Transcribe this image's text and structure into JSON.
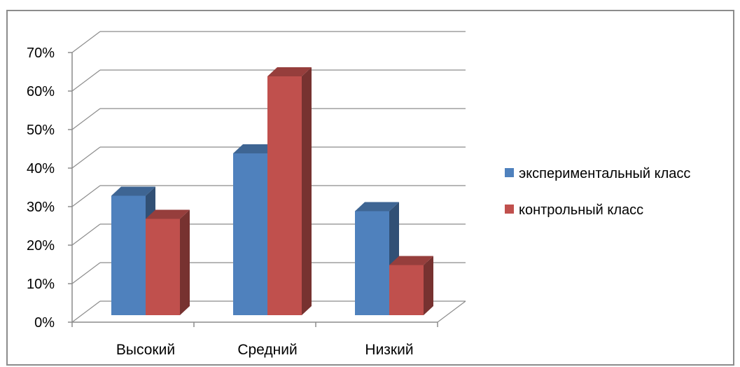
{
  "chart_data": {
    "type": "bar",
    "three_d": true,
    "categories": [
      "Высокий",
      "Средний",
      "Низкий"
    ],
    "series": [
      {
        "name": "экспериментальный класс",
        "values": [
          31,
          42,
          27
        ],
        "color": "#4f81bd"
      },
      {
        "name": "контрольный класс",
        "values": [
          25,
          62,
          13
        ],
        "color": "#c0504d"
      }
    ],
    "y_ticks": [
      "0%",
      "10%",
      "20%",
      "30%",
      "40%",
      "50%",
      "60%",
      "70%"
    ],
    "ylim": [
      0,
      70
    ],
    "y_unit": "%",
    "grid": true,
    "legend_position": "right",
    "title": "",
    "xlabel": "",
    "ylabel": ""
  }
}
